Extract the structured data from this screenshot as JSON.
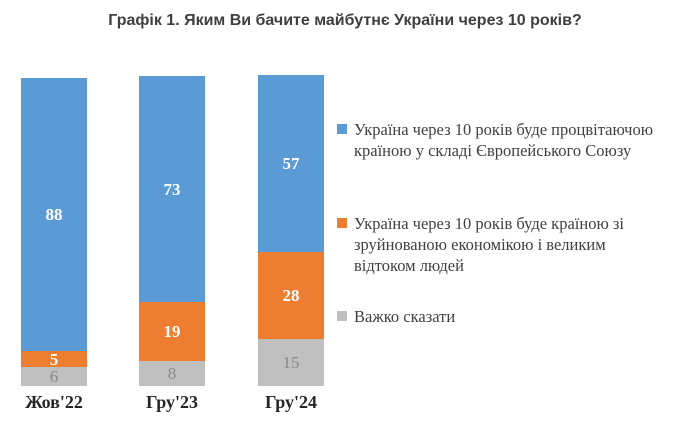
{
  "title": "Графік 1. Яким Ви бачите майбутнє України через 10 років?",
  "colors": {
    "series_blue": "#5B9BD5",
    "series_orange": "#ED7D31",
    "series_gray": "#C0C0C0",
    "title_text": "#3f3f3f",
    "legend_text": "#404040",
    "gray_value_label": "#8A8A8A",
    "white_value_label": "#FFFFFF"
  },
  "chart_data": {
    "type": "bar",
    "stacked": true,
    "orientation": "vertical",
    "title": "Графік 1. Яким Ви бачите майбутнє України через 10 років?",
    "categories": [
      "Жов'22",
      "Гру'23",
      "Гру'24"
    ],
    "series": [
      {
        "name": "Україна через 10 років буде процвітаючою країною у складі Європейського Союзу",
        "color": "#5B9BD5",
        "label_color": "#FFFFFF",
        "label_bold": true,
        "values": [
          88,
          73,
          57
        ]
      },
      {
        "name": "Україна через 10 років буде країною зі зруйнованою економікою і великим відтоком людей",
        "color": "#ED7D31",
        "label_color": "#FFFFFF",
        "label_bold": true,
        "values": [
          5,
          19,
          28
        ]
      },
      {
        "name": "Важко сказати",
        "color": "#C0C0C0",
        "label_color": "#8A8A8A",
        "label_bold": false,
        "values": [
          6,
          8,
          15
        ]
      }
    ],
    "ylim": [
      0,
      100
    ],
    "grid": false,
    "axis_lines": false,
    "legend_position": "right",
    "value_labels": "inside"
  },
  "legend": {
    "items": [
      {
        "color": "#5B9BD5",
        "lines": [
          "Україна через 10 років буде процвітаючою",
          "країною у складі Європейського Союзу"
        ]
      },
      {
        "color": "#ED7D31",
        "lines": [
          "Україна через 10 років буде країною зі",
          "зруйнованою економікою і великим",
          "відтоком людей"
        ]
      },
      {
        "color": "#C0C0C0",
        "lines": [
          "Важко сказати"
        ]
      }
    ]
  }
}
